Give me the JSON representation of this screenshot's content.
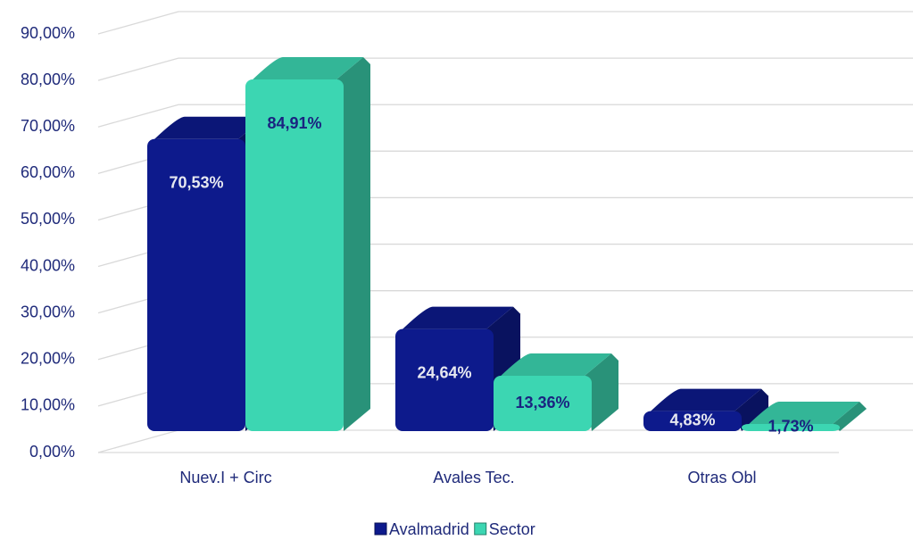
{
  "chart_data": {
    "type": "bar3d",
    "categories": [
      "Nuev.I + Circ",
      "Avales Tec.",
      "Otras Obl"
    ],
    "series": [
      {
        "name": "Avalmadrid",
        "color": "#0d1a8c",
        "values": [
          70.53,
          24.64,
          4.83
        ],
        "value_labels": [
          "70,53%",
          "24,64%",
          "4,83%"
        ]
      },
      {
        "name": "Sector",
        "color": "#3cd6b2",
        "values": [
          84.91,
          13.36,
          1.73
        ],
        "value_labels": [
          "84,91%",
          "13,36%",
          "1,73%"
        ]
      }
    ],
    "ylim": [
      0,
      100
    ],
    "yticks": [
      {
        "value": 0,
        "label": "0,00%"
      },
      {
        "value": 10,
        "label": "10,00%"
      },
      {
        "value": 20,
        "label": "20,00%"
      },
      {
        "value": 30,
        "label": "30,00%"
      },
      {
        "value": 40,
        "label": "40,00%"
      },
      {
        "value": 50,
        "label": "50,00%"
      },
      {
        "value": 60,
        "label": "60,00%"
      },
      {
        "value": 70,
        "label": "70,00%"
      },
      {
        "value": 80,
        "label": "80,00%"
      },
      {
        "value": 90,
        "label": "90,00%"
      }
    ],
    "grid": true,
    "legend": "bottom"
  }
}
